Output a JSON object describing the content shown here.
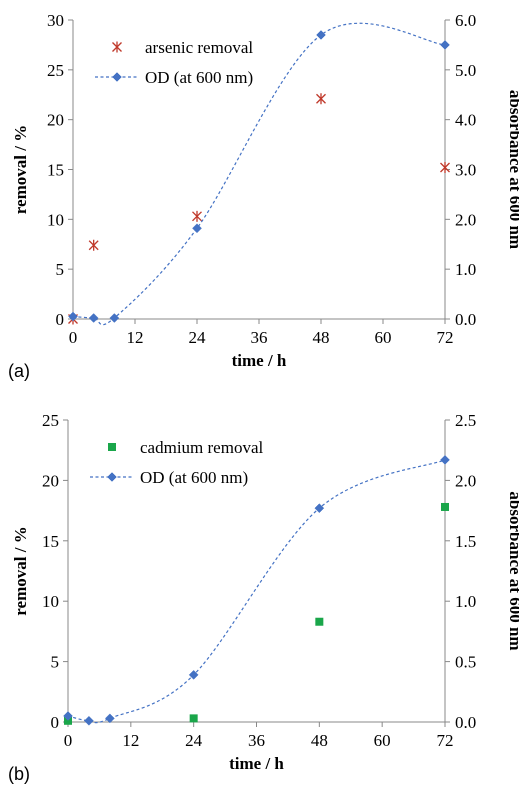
{
  "chart_data": [
    {
      "panel_label": "(a)",
      "type": "scatter+line",
      "xlabel": "time / h",
      "ylabel": "removal / %",
      "y2label": "absorbance at 600 nm",
      "xlim": [
        0,
        72
      ],
      "ylim": [
        0,
        30
      ],
      "y2lim": [
        0,
        6
      ],
      "xticks": [
        "0",
        "12",
        "24",
        "36",
        "48",
        "60",
        "72"
      ],
      "yticks": [
        "0",
        "5",
        "10",
        "15",
        "20",
        "25",
        "30"
      ],
      "y2ticks": [
        "0.0",
        "1.0",
        "2.0",
        "3.0",
        "4.0",
        "5.0",
        "6.0"
      ],
      "legend_position": "top-left",
      "series": [
        {
          "name": "arsenic removal",
          "axis": "left",
          "marker": "asterisk",
          "color": "#c0392b",
          "x": [
            0,
            4,
            24,
            48,
            72
          ],
          "y": [
            0,
            7.4,
            10.3,
            22.1,
            15.2
          ]
        },
        {
          "name": "OD (at 600 nm)",
          "axis": "right",
          "marker": "diamond",
          "color": "#4472c4",
          "line": "dashed-smooth",
          "x": [
            0,
            4,
            8,
            24,
            48,
            72
          ],
          "y": [
            0.05,
            0.02,
            0.02,
            1.82,
            5.7,
            5.5
          ]
        }
      ]
    },
    {
      "panel_label": "(b)",
      "type": "scatter+line",
      "xlabel": "time / h",
      "ylabel": "removal / %",
      "y2label": "absorbance at 600 nm",
      "xlim": [
        0,
        72
      ],
      "ylim": [
        0,
        25
      ],
      "y2lim": [
        0,
        2.5
      ],
      "xticks": [
        "0",
        "12",
        "24",
        "36",
        "48",
        "60",
        "72"
      ],
      "yticks": [
        "0",
        "5",
        "10",
        "15",
        "20",
        "25"
      ],
      "y2ticks": [
        "0.0",
        "0.5",
        "1.0",
        "1.5",
        "2.0",
        "2.5"
      ],
      "legend_position": "top-left",
      "series": [
        {
          "name": "cadmium removal",
          "axis": "left",
          "marker": "square",
          "color": "#1aa64a",
          "x": [
            0,
            24,
            48,
            72
          ],
          "y": [
            0.1,
            0.3,
            8.3,
            17.8
          ]
        },
        {
          "name": "OD (at 600 nm)",
          "axis": "right",
          "marker": "diamond",
          "color": "#4472c4",
          "line": "dashed-smooth",
          "x": [
            0,
            4,
            8,
            24,
            48,
            72
          ],
          "y": [
            0.05,
            0.01,
            0.03,
            0.39,
            1.77,
            2.17
          ]
        }
      ]
    }
  ]
}
